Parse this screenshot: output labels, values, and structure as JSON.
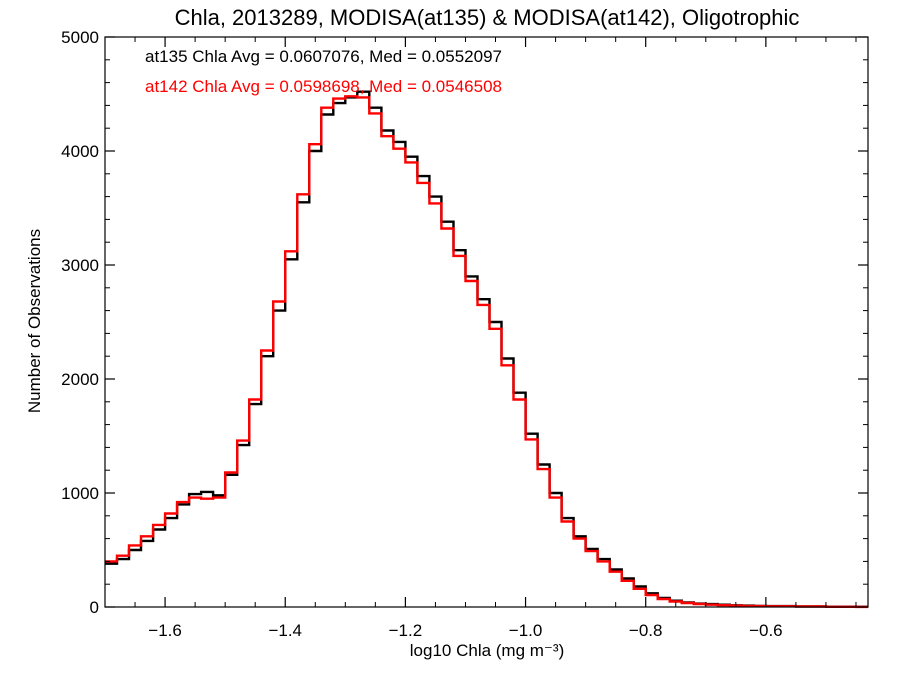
{
  "chart_data": {
    "type": "line",
    "title": "Chla, 2013289, MODISA(at135) & MODISA(at142), Oligotrophic",
    "xlabel": "log10 Chla (mg m⁻³)",
    "ylabel": "Number of Observations",
    "xlim": [
      -1.7,
      -0.43
    ],
    "ylim": [
      0,
      5000
    ],
    "x_ticks": [
      -1.6,
      -1.4,
      -1.2,
      -1.0,
      -0.8,
      -0.6
    ],
    "x_tick_labels": [
      "−1.6",
      "−1.4",
      "−1.2",
      "−1.0",
      "−0.8",
      "−0.6"
    ],
    "y_ticks": [
      0,
      1000,
      2000,
      3000,
      4000,
      5000
    ],
    "y_tick_labels": [
      "0",
      "1000",
      "2000",
      "3000",
      "4000",
      "5000"
    ],
    "grid": false,
    "annotations": [
      {
        "text": "at135 Chla Avg = 0.0607076, Med = 0.0552097",
        "color": "#000000"
      },
      {
        "text": "at142 Chla Avg = 0.0598698, Med = 0.0546508",
        "color": "#ff0000"
      }
    ],
    "series": [
      {
        "color": "#000000",
        "x": [
          -1.7,
          -1.68,
          -1.66,
          -1.64,
          -1.62,
          -1.6,
          -1.58,
          -1.56,
          -1.54,
          -1.52,
          -1.5,
          -1.48,
          -1.46,
          -1.44,
          -1.42,
          -1.4,
          -1.38,
          -1.36,
          -1.34,
          -1.32,
          -1.3,
          -1.28,
          -1.26,
          -1.24,
          -1.22,
          -1.2,
          -1.18,
          -1.16,
          -1.14,
          -1.12,
          -1.1,
          -1.08,
          -1.06,
          -1.04,
          -1.02,
          -1.0,
          -0.98,
          -0.96,
          -0.94,
          -0.92,
          -0.9,
          -0.88,
          -0.86,
          -0.84,
          -0.82,
          -0.8,
          -0.78,
          -0.76,
          -0.74,
          -0.72,
          -0.7,
          -0.68,
          -0.66,
          -0.64,
          -0.62,
          -0.6,
          -0.55,
          -0.5,
          -0.45,
          -0.43
        ],
        "y": [
          380,
          420,
          500,
          580,
          680,
          780,
          900,
          990,
          1010,
          980,
          1160,
          1420,
          1780,
          2200,
          2600,
          3050,
          3550,
          4000,
          4320,
          4420,
          4470,
          4520,
          4380,
          4180,
          4080,
          3950,
          3780,
          3600,
          3380,
          3130,
          2900,
          2700,
          2500,
          2180,
          1880,
          1520,
          1250,
          1000,
          780,
          620,
          510,
          420,
          330,
          250,
          180,
          120,
          80,
          55,
          40,
          30,
          25,
          20,
          15,
          12,
          10,
          8,
          5,
          3,
          2,
          2
        ]
      },
      {
        "color": "#ff0000",
        "x": [
          -1.7,
          -1.68,
          -1.66,
          -1.64,
          -1.62,
          -1.6,
          -1.58,
          -1.56,
          -1.54,
          -1.52,
          -1.5,
          -1.48,
          -1.46,
          -1.44,
          -1.42,
          -1.4,
          -1.38,
          -1.36,
          -1.34,
          -1.32,
          -1.3,
          -1.28,
          -1.26,
          -1.24,
          -1.22,
          -1.2,
          -1.18,
          -1.16,
          -1.14,
          -1.12,
          -1.1,
          -1.08,
          -1.06,
          -1.04,
          -1.02,
          -1.0,
          -0.98,
          -0.96,
          -0.94,
          -0.92,
          -0.9,
          -0.88,
          -0.86,
          -0.84,
          -0.82,
          -0.8,
          -0.78,
          -0.76,
          -0.74,
          -0.72,
          -0.7,
          -0.68,
          -0.66,
          -0.64,
          -0.62,
          -0.6,
          -0.55,
          -0.5,
          -0.45,
          -0.43
        ],
        "y": [
          400,
          450,
          540,
          620,
          720,
          820,
          920,
          960,
          950,
          960,
          1180,
          1460,
          1820,
          2250,
          2680,
          3120,
          3620,
          4060,
          4380,
          4460,
          4480,
          4470,
          4330,
          4130,
          4020,
          3900,
          3720,
          3540,
          3320,
          3080,
          2860,
          2650,
          2440,
          2120,
          1820,
          1470,
          1210,
          960,
          750,
          600,
          490,
          400,
          310,
          230,
          160,
          105,
          70,
          48,
          35,
          26,
          20,
          16,
          12,
          10,
          8,
          6,
          4,
          2,
          1,
          1
        ]
      }
    ]
  }
}
